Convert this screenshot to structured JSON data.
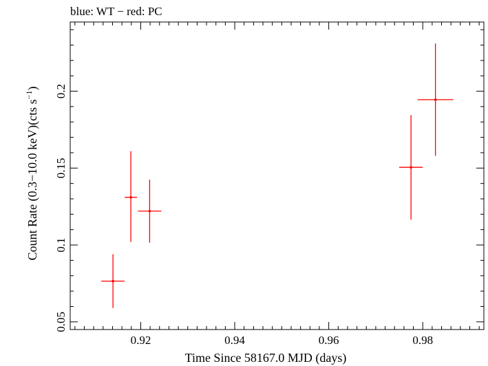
{
  "chart_data": {
    "type": "scatter",
    "title": "blue: WT − red: PC",
    "xlabel": "Time Since 58167.0 MJD (days)",
    "ylabel": "Count Rate (0.3−10.0 keV)(cts s",
    "ylabel_superscript": "−1",
    "ylabel_suffix": ")",
    "xlim": [
      0.905,
      0.993
    ],
    "ylim": [
      0.045,
      0.245
    ],
    "x_ticks": [
      0.92,
      0.94,
      0.96,
      0.98
    ],
    "x_tick_labels": [
      "0.92",
      "0.94",
      "0.96",
      "0.98"
    ],
    "y_ticks": [
      0.05,
      0.1,
      0.15,
      0.2
    ],
    "y_tick_labels": [
      "0.05",
      "0.1",
      "0.15",
      "0.2"
    ],
    "x_minor_step": 0.002,
    "y_minor_step": 0.01,
    "grid": false,
    "series": [
      {
        "name": "PC",
        "color": "#ff0000",
        "points": [
          {
            "x": 0.9141,
            "y": 0.0765,
            "xerr": 0.0025,
            "yerr_low": 0.0175,
            "yerr_high": 0.0175
          },
          {
            "x": 0.9179,
            "y": 0.131,
            "xerr": 0.0013,
            "yerr_low": 0.029,
            "yerr_high": 0.03
          },
          {
            "x": 0.9219,
            "y": 0.122,
            "xerr": 0.0025,
            "yerr_low": 0.0205,
            "yerr_high": 0.0205
          },
          {
            "x": 0.9775,
            "y": 0.1505,
            "xerr": 0.0025,
            "yerr_low": 0.034,
            "yerr_high": 0.034
          },
          {
            "x": 0.9827,
            "y": 0.1945,
            "xerr": 0.0038,
            "yerr_low": 0.0365,
            "yerr_high": 0.0365
          }
        ]
      }
    ]
  }
}
